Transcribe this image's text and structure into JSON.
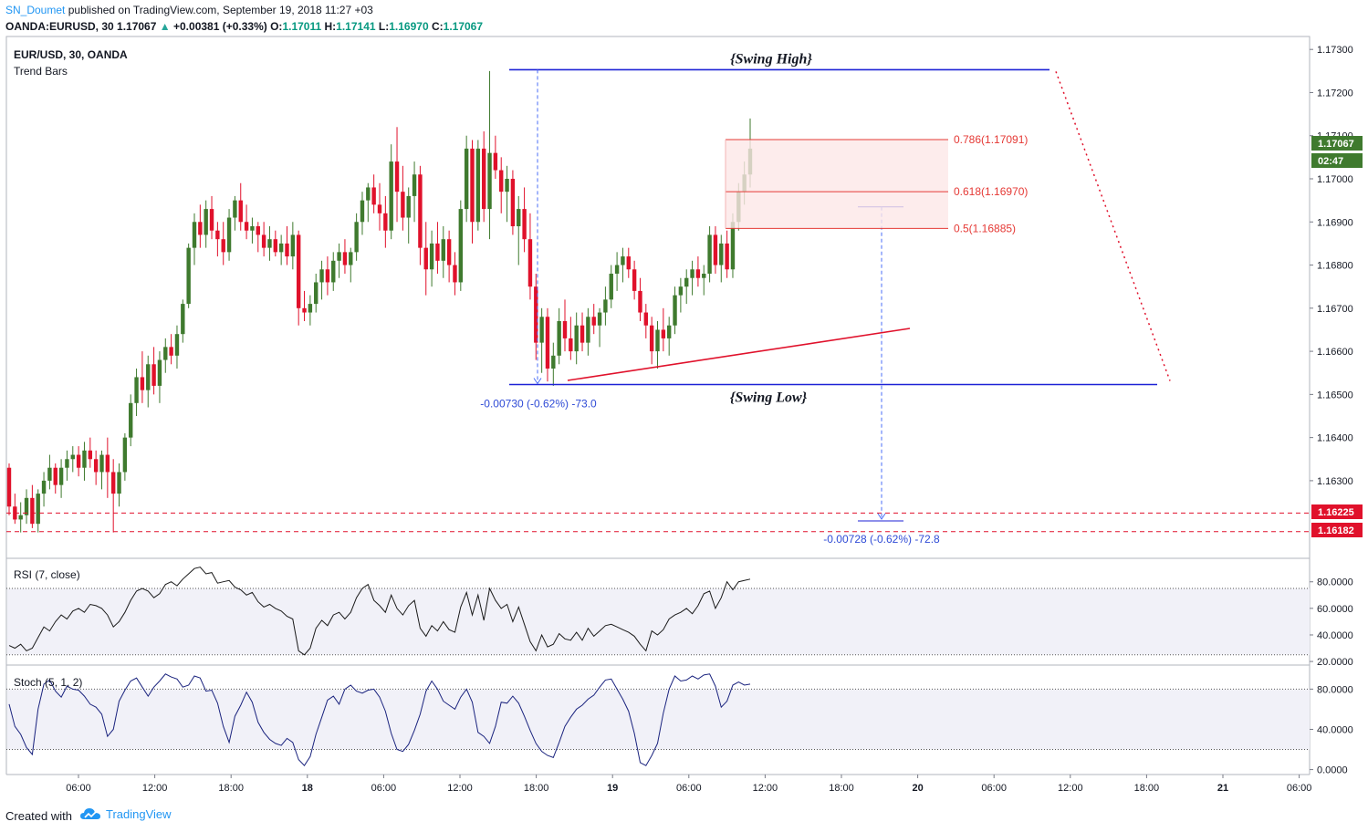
{
  "header": {
    "author": "SN_Doumet",
    "published": "published on TradingView.com, September 19, 2018 11:27 +03",
    "symbol_line": "OANDA:EURUSD, 30",
    "last": "1.17067",
    "arrow": "▲",
    "change": "+0.00381 (+0.33%)",
    "o_label": "O:",
    "o": "1.17011",
    "h_label": "H:",
    "h": "1.17141",
    "l_label": "L:",
    "l": "1.16970",
    "c_label": "C:",
    "c": "1.17067"
  },
  "legend": {
    "main": "EUR/USD, 30, OANDA",
    "sub": "Trend Bars",
    "rsi": "RSI (7, close)",
    "stoch": "Stoch (5, 1, 2)"
  },
  "footer": {
    "created": "Created with",
    "brand": "TradingView"
  },
  "chart_data": [
    {
      "type": "candlestick",
      "price_axis": [
        "1.17300",
        "1.17200",
        "1.17100",
        "1.17000",
        "1.16900",
        "1.16800",
        "1.16700",
        "1.16600",
        "1.16500",
        "1.16400",
        "1.16300"
      ],
      "ylim": [
        1.1612,
        1.1733
      ],
      "time_axis": [
        "06:00",
        "12:00",
        "18:00",
        "18",
        "06:00",
        "12:00",
        "18:00",
        "19",
        "06:00",
        "12:00",
        "18:00",
        "20",
        "06:00",
        "12:00",
        "18:00",
        "21",
        "06:00"
      ],
      "price_tags": [
        {
          "value": "1.17067",
          "color": "#3f7a2e"
        },
        {
          "value": "02:47",
          "color": "#3f7a2e"
        },
        {
          "value": "1.16225",
          "color": "#e0112b"
        },
        {
          "value": "1.16182",
          "color": "#e0112b"
        }
      ],
      "annotations": {
        "swing_high": {
          "label": "{Swing High}",
          "price": 1.17253
        },
        "swing_low": {
          "label": "{Swing Low}",
          "price": 1.16523
        },
        "fib_levels": [
          {
            "label": "0.786(1.17091)",
            "price": 1.17091
          },
          {
            "label": "0.618(1.16970)",
            "price": 1.1697
          },
          {
            "label": "0.5(1.16885)",
            "price": 1.16885
          }
        ],
        "measure_1": "-0.00730 (-0.62%) -73.0",
        "measure_2": "-0.00728 (-0.62%) -72.8",
        "support_lines": [
          1.16225,
          1.16182
        ]
      },
      "colors": {
        "up": "#3f7a2e",
        "down": "#e0112b",
        "swing": "#1d22d6",
        "fib": "#e53935"
      },
      "candles": [
        [
          1.1633,
          1.1634,
          1.1622,
          1.1624
        ],
        [
          1.1624,
          1.1627,
          1.162,
          1.1621
        ],
        [
          1.1621,
          1.1625,
          1.1618,
          1.1622
        ],
        [
          1.1622,
          1.1628,
          1.162,
          1.1626
        ],
        [
          1.1626,
          1.1629,
          1.1619,
          1.162
        ],
        [
          1.162,
          1.1628,
          1.1618,
          1.1627
        ],
        [
          1.1627,
          1.1632,
          1.1624,
          1.163
        ],
        [
          1.163,
          1.1636,
          1.1628,
          1.1633
        ],
        [
          1.1633,
          1.1634,
          1.1627,
          1.1629
        ],
        [
          1.1629,
          1.1635,
          1.1626,
          1.1633
        ],
        [
          1.1633,
          1.1637,
          1.163,
          1.1635
        ],
        [
          1.1635,
          1.1638,
          1.1632,
          1.1636
        ],
        [
          1.1636,
          1.1638,
          1.1631,
          1.1633
        ],
        [
          1.1633,
          1.1639,
          1.163,
          1.1637
        ],
        [
          1.1637,
          1.164,
          1.1633,
          1.1635
        ],
        [
          1.1635,
          1.1637,
          1.1629,
          1.1632
        ],
        [
          1.1632,
          1.1637,
          1.1628,
          1.1636
        ],
        [
          1.1636,
          1.164,
          1.1626,
          1.1632
        ],
        [
          1.1632,
          1.1635,
          1.1618,
          1.1627
        ],
        [
          1.1627,
          1.1634,
          1.1624,
          1.1632
        ],
        [
          1.1632,
          1.1641,
          1.163,
          1.164
        ],
        [
          1.164,
          1.165,
          1.1638,
          1.1648
        ],
        [
          1.1648,
          1.1656,
          1.1645,
          1.1654
        ],
        [
          1.1654,
          1.166,
          1.1648,
          1.1651
        ],
        [
          1.1651,
          1.1659,
          1.1647,
          1.1657
        ],
        [
          1.1657,
          1.1661,
          1.165,
          1.1652
        ],
        [
          1.1652,
          1.166,
          1.1648,
          1.1658
        ],
        [
          1.1658,
          1.1663,
          1.1655,
          1.1661
        ],
        [
          1.1661,
          1.1664,
          1.1657,
          1.1659
        ],
        [
          1.1659,
          1.1666,
          1.1656,
          1.1664
        ],
        [
          1.1664,
          1.1672,
          1.1662,
          1.1671
        ],
        [
          1.1671,
          1.1685,
          1.167,
          1.1684
        ],
        [
          1.1684,
          1.1692,
          1.168,
          1.169
        ],
        [
          1.169,
          1.1694,
          1.1684,
          1.1687
        ],
        [
          1.1687,
          1.1695,
          1.1684,
          1.1693
        ],
        [
          1.1693,
          1.1696,
          1.1686,
          1.1688
        ],
        [
          1.1688,
          1.169,
          1.1682,
          1.1686
        ],
        [
          1.1686,
          1.169,
          1.168,
          1.1683
        ],
        [
          1.1683,
          1.1693,
          1.1681,
          1.1691
        ],
        [
          1.1691,
          1.1696,
          1.1688,
          1.1695
        ],
        [
          1.1695,
          1.1699,
          1.1688,
          1.169
        ],
        [
          1.169,
          1.1694,
          1.1686,
          1.1688
        ],
        [
          1.1688,
          1.1691,
          1.1685,
          1.1689
        ],
        [
          1.1689,
          1.169,
          1.1683,
          1.1687
        ],
        [
          1.1687,
          1.169,
          1.1682,
          1.1684
        ],
        [
          1.1684,
          1.1689,
          1.1681,
          1.1686
        ],
        [
          1.1686,
          1.1688,
          1.1682,
          1.1683
        ],
        [
          1.1683,
          1.1687,
          1.168,
          1.1685
        ],
        [
          1.1685,
          1.1689,
          1.168,
          1.1682
        ],
        [
          1.1682,
          1.169,
          1.1679,
          1.1687
        ],
        [
          1.1687,
          1.1688,
          1.1666,
          1.167
        ],
        [
          1.167,
          1.1674,
          1.1667,
          1.1669
        ],
        [
          1.1669,
          1.1673,
          1.1666,
          1.1671
        ],
        [
          1.1671,
          1.1678,
          1.1669,
          1.1676
        ],
        [
          1.1676,
          1.1681,
          1.1672,
          1.1679
        ],
        [
          1.1679,
          1.1682,
          1.1673,
          1.1676
        ],
        [
          1.1676,
          1.1683,
          1.1674,
          1.1681
        ],
        [
          1.1681,
          1.1685,
          1.1677,
          1.1683
        ],
        [
          1.1683,
          1.1686,
          1.1678,
          1.168
        ],
        [
          1.168,
          1.1684,
          1.1676,
          1.1683
        ],
        [
          1.1683,
          1.1692,
          1.1681,
          1.169
        ],
        [
          1.169,
          1.1697,
          1.1687,
          1.1695
        ],
        [
          1.1695,
          1.1699,
          1.169,
          1.1698
        ],
        [
          1.1698,
          1.1701,
          1.1692,
          1.1694
        ],
        [
          1.1694,
          1.1699,
          1.1688,
          1.1692
        ],
        [
          1.1692,
          1.1696,
          1.1684,
          1.1688
        ],
        [
          1.1688,
          1.1708,
          1.1686,
          1.1704
        ],
        [
          1.1704,
          1.1712,
          1.169,
          1.1697
        ],
        [
          1.1697,
          1.1703,
          1.1688,
          1.1691
        ],
        [
          1.1691,
          1.1698,
          1.1685,
          1.1696
        ],
        [
          1.1696,
          1.1704,
          1.169,
          1.1701
        ],
        [
          1.1701,
          1.1703,
          1.168,
          1.1684
        ],
        [
          1.1684,
          1.169,
          1.1673,
          1.1679
        ],
        [
          1.1679,
          1.1688,
          1.1675,
          1.1685
        ],
        [
          1.1685,
          1.169,
          1.1678,
          1.1681
        ],
        [
          1.1681,
          1.1689,
          1.1677,
          1.1686
        ],
        [
          1.1686,
          1.1688,
          1.1676,
          1.168
        ],
        [
          1.168,
          1.1683,
          1.1673,
          1.1676
        ],
        [
          1.1676,
          1.1695,
          1.1674,
          1.1693
        ],
        [
          1.1693,
          1.171,
          1.169,
          1.1707
        ],
        [
          1.1707,
          1.1709,
          1.1685,
          1.169
        ],
        [
          1.169,
          1.1709,
          1.1688,
          1.1707
        ],
        [
          1.1707,
          1.1711,
          1.169,
          1.1693
        ],
        [
          1.1693,
          1.1725,
          1.1686,
          1.1706
        ],
        [
          1.1706,
          1.171,
          1.17,
          1.1702
        ],
        [
          1.1702,
          1.1705,
          1.1692,
          1.1697
        ],
        [
          1.1697,
          1.1703,
          1.169,
          1.17
        ],
        [
          1.17,
          1.1702,
          1.1687,
          1.1689
        ],
        [
          1.1689,
          1.1696,
          1.168,
          1.1693
        ],
        [
          1.1693,
          1.1698,
          1.1683,
          1.1686
        ],
        [
          1.1686,
          1.1692,
          1.1672,
          1.1675
        ],
        [
          1.1675,
          1.1678,
          1.1658,
          1.1662
        ],
        [
          1.1662,
          1.167,
          1.1655,
          1.1668
        ],
        [
          1.1668,
          1.167,
          1.1653,
          1.1656
        ],
        [
          1.1656,
          1.1662,
          1.1652,
          1.1659
        ],
        [
          1.1659,
          1.167,
          1.1657,
          1.1667
        ],
        [
          1.1667,
          1.1672,
          1.166,
          1.1663
        ],
        [
          1.1663,
          1.1668,
          1.1658,
          1.166
        ],
        [
          1.166,
          1.1669,
          1.1657,
          1.1666
        ],
        [
          1.1666,
          1.1669,
          1.166,
          1.1662
        ],
        [
          1.1662,
          1.167,
          1.1659,
          1.1668
        ],
        [
          1.1668,
          1.1671,
          1.1664,
          1.1666
        ],
        [
          1.1666,
          1.167,
          1.1661,
          1.1669
        ],
        [
          1.1669,
          1.1675,
          1.1666,
          1.1672
        ],
        [
          1.1672,
          1.168,
          1.167,
          1.1678
        ],
        [
          1.1678,
          1.1683,
          1.1674,
          1.168
        ],
        [
          1.168,
          1.1684,
          1.1676,
          1.1682
        ],
        [
          1.1682,
          1.1684,
          1.1677,
          1.1679
        ],
        [
          1.1679,
          1.1681,
          1.1672,
          1.1674
        ],
        [
          1.1674,
          1.1677,
          1.1667,
          1.1669
        ],
        [
          1.1669,
          1.1671,
          1.1663,
          1.1666
        ],
        [
          1.1666,
          1.1668,
          1.1657,
          1.166
        ],
        [
          1.166,
          1.1667,
          1.1656,
          1.1665
        ],
        [
          1.1665,
          1.167,
          1.166,
          1.1663
        ],
        [
          1.1663,
          1.1668,
          1.1659,
          1.1666
        ],
        [
          1.1666,
          1.1675,
          1.1664,
          1.1673
        ],
        [
          1.1673,
          1.1677,
          1.1669,
          1.1675
        ],
        [
          1.1675,
          1.1679,
          1.1671,
          1.1677
        ],
        [
          1.1677,
          1.1681,
          1.1673,
          1.1679
        ],
        [
          1.1679,
          1.1682,
          1.1675,
          1.1677
        ],
        [
          1.1677,
          1.168,
          1.1673,
          1.1678
        ],
        [
          1.1678,
          1.1689,
          1.1676,
          1.1687
        ],
        [
          1.1687,
          1.1689,
          1.1678,
          1.168
        ],
        [
          1.168,
          1.1687,
          1.1676,
          1.1685
        ],
        [
          1.1685,
          1.1688,
          1.1677,
          1.1679
        ],
        [
          1.1679,
          1.1692,
          1.1677,
          1.169
        ],
        [
          1.169,
          1.1699,
          1.1688,
          1.1697
        ],
        [
          1.1697,
          1.1704,
          1.1694,
          1.1701
        ],
        [
          1.1701,
          1.1714,
          1.1698,
          1.1707
        ]
      ]
    },
    {
      "type": "line",
      "name": "RSI (7, close)",
      "y_axis": [
        "80.0000",
        "60.0000",
        "40.0000",
        "20.0000"
      ],
      "ylim": [
        18,
        97
      ],
      "levels": [
        75,
        25
      ],
      "values": [
        32,
        30,
        33,
        28,
        30,
        38,
        46,
        43,
        50,
        55,
        52,
        58,
        60,
        57,
        63,
        62,
        60,
        55,
        46,
        50,
        57,
        66,
        73,
        75,
        73,
        68,
        71,
        78,
        80,
        77,
        82,
        86,
        90,
        91,
        86,
        87,
        79,
        80,
        81,
        76,
        74,
        70,
        72,
        65,
        61,
        63,
        60,
        58,
        54,
        52,
        28,
        25,
        30,
        45,
        51,
        47,
        55,
        57,
        52,
        57,
        68,
        75,
        78,
        66,
        62,
        57,
        70,
        60,
        55,
        62,
        66,
        45,
        39,
        47,
        43,
        50,
        44,
        42,
        61,
        72,
        55,
        70,
        51,
        75,
        66,
        60,
        63,
        50,
        61,
        48,
        35,
        28,
        40,
        31,
        33,
        41,
        37,
        36,
        42,
        36,
        45,
        39,
        43,
        47,
        48,
        46,
        44,
        42,
        39,
        33,
        28,
        43,
        40,
        44,
        52,
        55,
        57,
        60,
        56,
        62,
        71,
        73,
        60,
        68,
        80,
        74,
        80,
        81,
        82
      ]
    },
    {
      "type": "line",
      "name": "Stoch (5, 1, 2)",
      "y_axis": [
        "80.0000",
        "40.0000",
        "0.0000"
      ],
      "ylim": [
        -4,
        103
      ],
      "levels": [
        80,
        20
      ],
      "values": [
        65,
        43,
        35,
        22,
        15,
        60,
        85,
        89,
        78,
        72,
        83,
        80,
        79,
        73,
        65,
        62,
        55,
        33,
        40,
        68,
        79,
        88,
        91,
        82,
        73,
        82,
        88,
        95,
        92,
        90,
        82,
        84,
        93,
        91,
        78,
        79,
        66,
        43,
        27,
        53,
        64,
        77,
        67,
        47,
        37,
        30,
        26,
        24,
        31,
        27,
        10,
        4,
        13,
        35,
        52,
        69,
        73,
        65,
        80,
        84,
        78,
        76,
        79,
        80,
        72,
        58,
        36,
        20,
        18,
        25,
        39,
        55,
        78,
        88,
        80,
        68,
        64,
        60,
        72,
        80,
        67,
        37,
        33,
        26,
        43,
        67,
        66,
        73,
        66,
        53,
        39,
        26,
        18,
        14,
        12,
        27,
        43,
        52,
        60,
        64,
        70,
        74,
        82,
        89,
        90,
        80,
        70,
        58,
        36,
        7,
        4,
        14,
        26,
        56,
        80,
        93,
        88,
        89,
        93,
        90,
        94,
        95,
        83,
        62,
        68,
        84,
        87,
        84,
        85
      ]
    }
  ]
}
